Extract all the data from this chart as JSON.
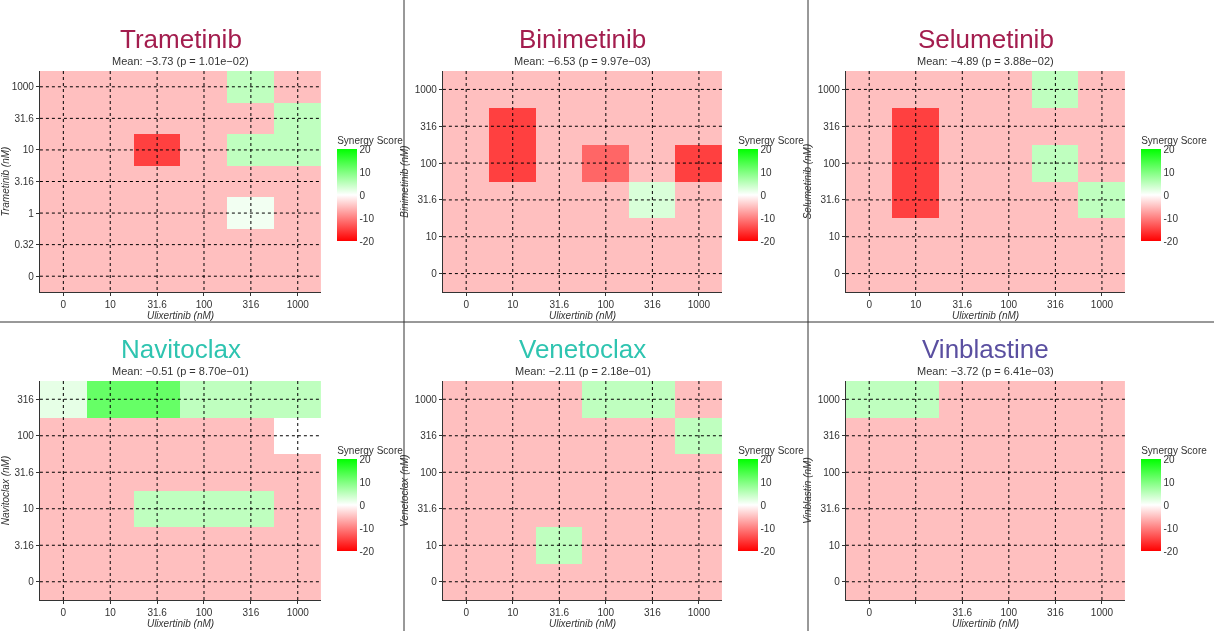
{
  "chart_data": [
    {
      "type": "heatmap",
      "title": "Trametinib",
      "subtitle": "Mean: −3.73 (p = 1.01e−02)",
      "xlabel": "Ulixertinib (nM)",
      "ylabel": "Trametinib (nM)",
      "clabel": "Synergy Score",
      "clim": [
        -20,
        20
      ],
      "cticks": [
        -20,
        -10,
        0,
        10,
        20
      ],
      "grid": true,
      "categories": [
        "0",
        "10",
        "31.6",
        "100",
        "316",
        "1000"
      ],
      "y_categories": [
        "1000",
        "31.6",
        "10",
        "3.16",
        "1",
        "0.32",
        "0"
      ],
      "cells": [
        [
          -5,
          -5,
          -5,
          -5,
          5,
          -5
        ],
        [
          -5,
          -5,
          -5,
          -5,
          -5,
          5
        ],
        [
          -5,
          -5,
          -15,
          -5,
          5,
          5
        ],
        [
          -5,
          -5,
          -5,
          -5,
          -5,
          -5
        ],
        [
          -5,
          -5,
          -5,
          -5,
          1,
          -5
        ],
        [
          -5,
          -5,
          -5,
          -5,
          -5,
          -5
        ],
        [
          -5,
          -5,
          -5,
          -5,
          -5,
          -5
        ]
      ]
    },
    {
      "type": "heatmap",
      "title": "Binimetinib",
      "subtitle": "Mean: −6.53 (p = 9.97e−03)",
      "xlabel": "Ulixertinib (nM)",
      "ylabel": "Binimetinib (nM)",
      "clabel": "Synergy Score",
      "clim": [
        -20,
        20
      ],
      "cticks": [
        -20,
        -10,
        0,
        10,
        20
      ],
      "grid": true,
      "categories": [
        "0",
        "10",
        "31.6",
        "100",
        "316",
        "1000"
      ],
      "y_categories": [
        "1000",
        "316",
        "100",
        "31.6",
        "10",
        "0"
      ],
      "cells": [
        [
          -5,
          -5,
          -5,
          -5,
          -5,
          -5
        ],
        [
          -5,
          -15,
          -5,
          -5,
          -5,
          -5
        ],
        [
          -5,
          -15,
          -5,
          -12,
          -5,
          -15
        ],
        [
          -5,
          -5,
          -5,
          -5,
          3,
          -5
        ],
        [
          -5,
          -5,
          -5,
          -5,
          -5,
          -5
        ],
        [
          -5,
          -5,
          -5,
          -5,
          -5,
          -5
        ]
      ]
    },
    {
      "type": "heatmap",
      "title": "Selumetinib",
      "subtitle": "Mean: −4.89 (p = 3.88e−02)",
      "xlabel": "Ulixertinib (nM)",
      "ylabel": "Selumetinib (nM)",
      "clabel": "Synergy Score",
      "clim": [
        -20,
        20
      ],
      "cticks": [
        -20,
        -10,
        0,
        10,
        20
      ],
      "grid": true,
      "categories": [
        "0",
        "10",
        "31.6",
        "100",
        "316",
        "1000"
      ],
      "y_categories": [
        "1000",
        "316",
        "100",
        "31.6",
        "10",
        "0"
      ],
      "cells": [
        [
          -5,
          -5,
          -5,
          -5,
          5,
          -5
        ],
        [
          -5,
          -15,
          -5,
          -5,
          -5,
          -5
        ],
        [
          -5,
          -15,
          -5,
          -5,
          5,
          -5
        ],
        [
          -5,
          -15,
          -5,
          -5,
          -5,
          5
        ],
        [
          -5,
          -5,
          -5,
          -5,
          -5,
          -5
        ],
        [
          -5,
          -5,
          -5,
          -5,
          -5,
          -5
        ]
      ]
    },
    {
      "type": "heatmap",
      "title": "Navitoclax",
      "subtitle": "Mean: −0.51 (p = 8.70e−01)",
      "xlabel": "Ulixertinib (nM)",
      "ylabel": "Navitoclax (nM)",
      "clabel": "Synergy Score",
      "clim": [
        -20,
        20
      ],
      "cticks": [
        -20,
        -10,
        0,
        10,
        20
      ],
      "grid": true,
      "categories": [
        "0",
        "10",
        "31.6",
        "100",
        "316",
        "1000"
      ],
      "y_categories": [
        "316",
        "100",
        "31.6",
        "10",
        "3.16",
        "0"
      ],
      "cells": [
        [
          2,
          12,
          12,
          5,
          5,
          5
        ],
        [
          -5,
          -5,
          -5,
          -5,
          -5,
          0
        ],
        [
          -5,
          -5,
          -5,
          -5,
          -5,
          -5
        ],
        [
          -5,
          -5,
          5,
          5,
          5,
          -5
        ],
        [
          -5,
          -5,
          -5,
          -5,
          -5,
          -5
        ],
        [
          -5,
          -5,
          -5,
          -5,
          -5,
          -5
        ]
      ]
    },
    {
      "type": "heatmap",
      "title": "Venetoclax",
      "subtitle": "Mean: −2.11 (p = 2.18e−01)",
      "xlabel": "Ulixertinib (nM)",
      "ylabel": "Venetoclax (nM)",
      "clabel": "Synergy Score",
      "clim": [
        -20,
        20
      ],
      "cticks": [
        -20,
        -10,
        0,
        10,
        20
      ],
      "grid": true,
      "categories": [
        "0",
        "10",
        "31.6",
        "100",
        "316",
        "1000"
      ],
      "y_categories": [
        "1000",
        "316",
        "100",
        "31.6",
        "10",
        "0"
      ],
      "cells": [
        [
          -5,
          -5,
          -5,
          5,
          5,
          -5
        ],
        [
          -5,
          -5,
          -5,
          -5,
          -5,
          5
        ],
        [
          -5,
          -5,
          -5,
          -5,
          -5,
          -5
        ],
        [
          -5,
          -5,
          -5,
          -5,
          -5,
          -5
        ],
        [
          -5,
          -5,
          5,
          -5,
          -5,
          -5
        ],
        [
          -5,
          -5,
          -5,
          -5,
          -5,
          -5
        ]
      ]
    },
    {
      "type": "heatmap",
      "title": "Vinblastine",
      "subtitle": "Mean: −3.72 (p = 6.41e−03)",
      "xlabel": "Ulixertinib (nM)",
      "ylabel": "Vinblastin (nM)",
      "clabel": "Synergy Score",
      "clim": [
        -20,
        20
      ],
      "cticks": [
        -20,
        -10,
        0,
        10,
        20
      ],
      "grid": true,
      "categories": [
        "0",
        null,
        "31.6",
        "100",
        "316",
        "1000"
      ],
      "y_categories": [
        "1000",
        "316",
        "100",
        "31.6",
        "10",
        "0"
      ],
      "cells": [
        [
          5,
          5,
          -5,
          -5,
          -5,
          -5
        ],
        [
          -5,
          -5,
          -5,
          -5,
          -5,
          -5
        ],
        [
          -5,
          -5,
          -5,
          -5,
          -5,
          -5
        ],
        [
          -5,
          -5,
          -5,
          -5,
          -5,
          -5
        ],
        [
          -5,
          -5,
          -5,
          -5,
          -5,
          -5
        ],
        [
          -5,
          -5,
          -5,
          -5,
          -5,
          -5
        ]
      ]
    }
  ]
}
